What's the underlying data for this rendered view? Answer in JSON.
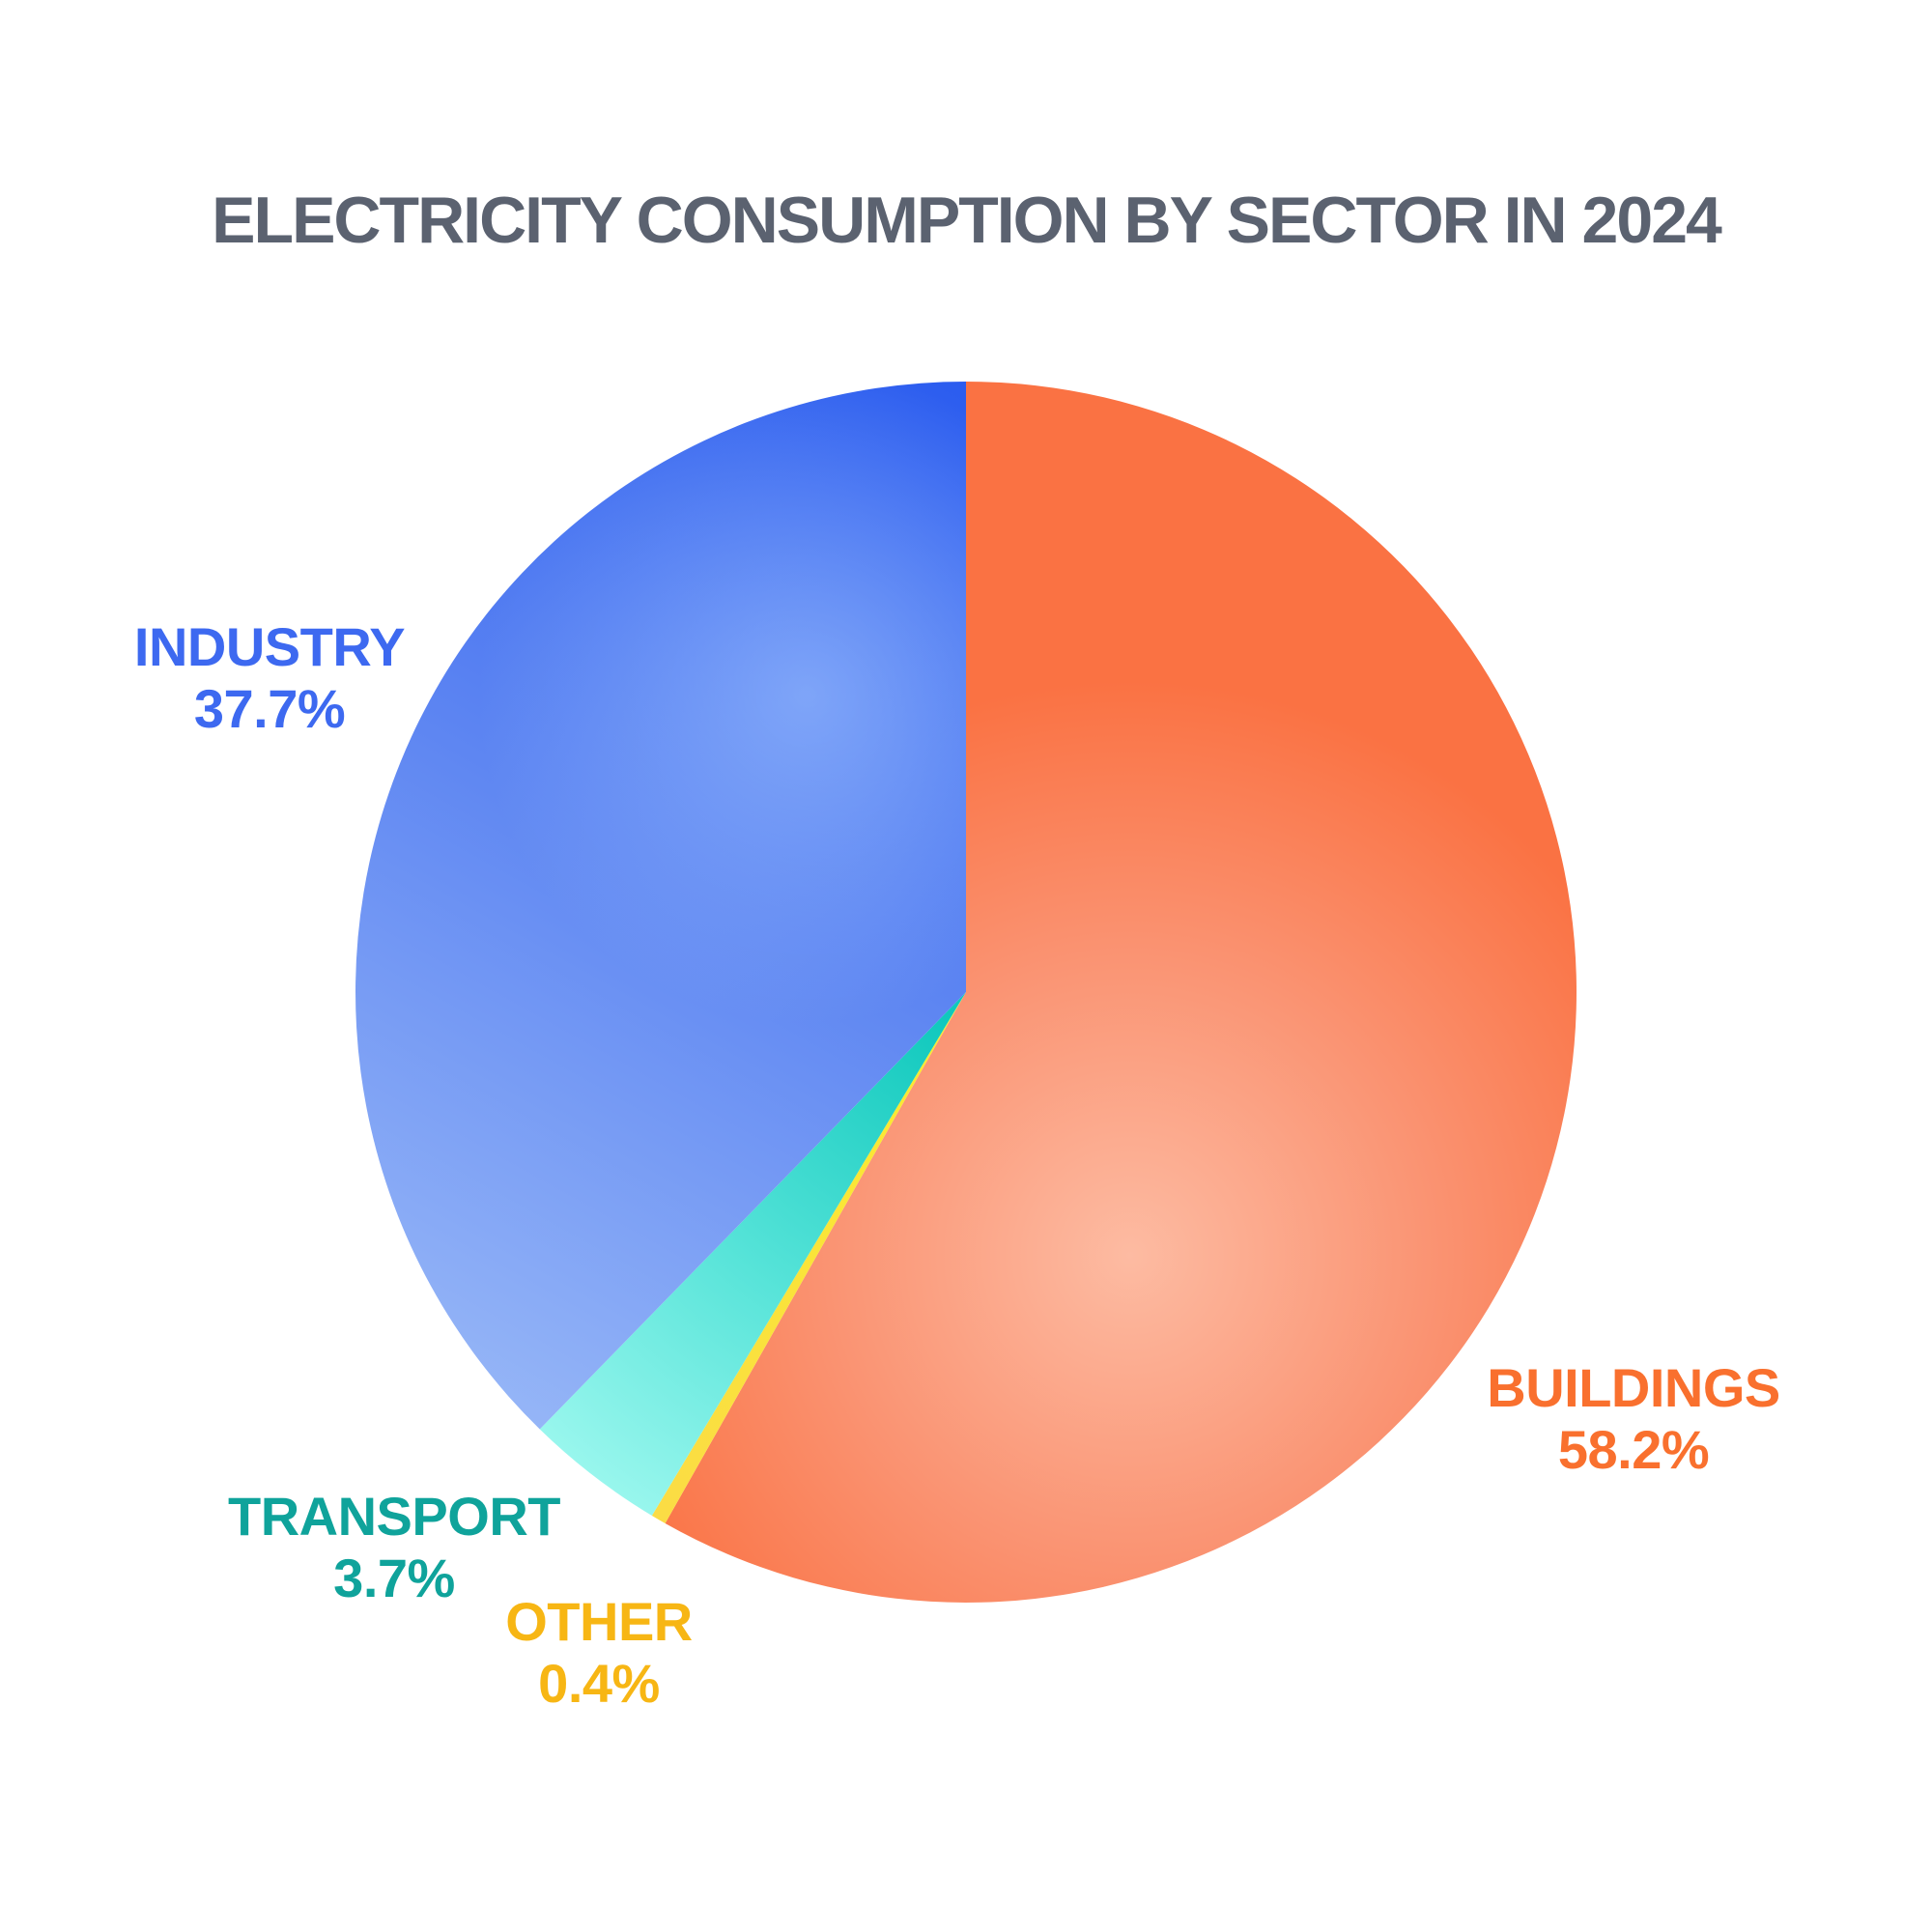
{
  "title": "ELECTRICITY CONSUMPTION BY SECTOR IN 2024",
  "palette": {
    "background": "#FFFFFF",
    "title_color": "#5B6270"
  },
  "chart_data": {
    "type": "pie",
    "title": "ELECTRICITY CONSUMPTION BY SECTOR IN 2024",
    "start_angle_deg": 0,
    "direction": "clockwise",
    "legend": "none (labels placed beside slices)",
    "slices": [
      {
        "label": "BUILDINGS",
        "value_pct": 58.2,
        "pct_label": "58.2%",
        "label_color": "#F9702E",
        "gradient": [
          "#FDBBA2",
          "#FA9372",
          "#FA7243"
        ]
      },
      {
        "label": "OTHER",
        "value_pct": 0.4,
        "pct_label": "0.4%",
        "label_color": "#F7B614",
        "gradient": [
          "#F9EC2D",
          "#FBDC45"
        ]
      },
      {
        "label": "TRANSPORT",
        "value_pct": 3.7,
        "pct_label": "3.7%",
        "label_color": "#0FA39B",
        "gradient": [
          "#0FC8BD",
          "#55E3D8",
          "#9BF7EE"
        ]
      },
      {
        "label": "INDUSTRY",
        "value_pct": 37.7,
        "pct_label": "37.7%",
        "label_color": "#3D69F0",
        "gradient": [
          "#2B5CEF",
          "#5E86F2",
          "#96B6F7"
        ]
      }
    ]
  }
}
